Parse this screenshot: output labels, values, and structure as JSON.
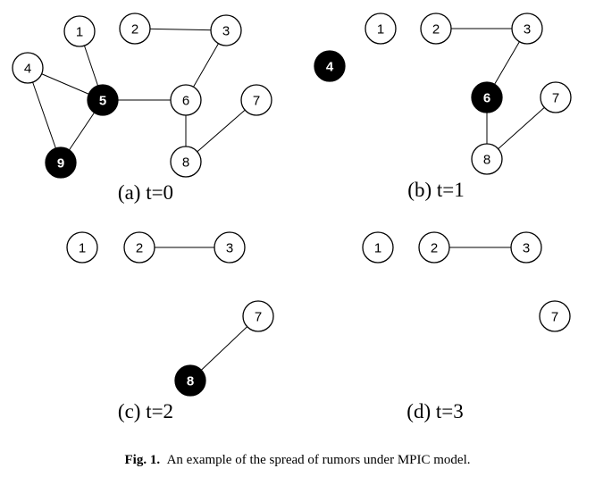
{
  "panels": [
    {
      "label": "(a) t=0",
      "nodes": [
        {
          "id": "1",
          "infected": false
        },
        {
          "id": "2",
          "infected": false
        },
        {
          "id": "3",
          "infected": false
        },
        {
          "id": "4",
          "infected": false
        },
        {
          "id": "5",
          "infected": true
        },
        {
          "id": "6",
          "infected": false
        },
        {
          "id": "7",
          "infected": false
        },
        {
          "id": "8",
          "infected": false
        },
        {
          "id": "9",
          "infected": true
        }
      ],
      "edges": [
        [
          "1",
          "5"
        ],
        [
          "2",
          "3"
        ],
        [
          "3",
          "6"
        ],
        [
          "4",
          "5"
        ],
        [
          "4",
          "9"
        ],
        [
          "5",
          "9"
        ],
        [
          "5",
          "6"
        ],
        [
          "6",
          "8"
        ],
        [
          "7",
          "8"
        ]
      ]
    },
    {
      "label": "(b) t=1",
      "nodes": [
        {
          "id": "1",
          "infected": false
        },
        {
          "id": "2",
          "infected": false
        },
        {
          "id": "3",
          "infected": false
        },
        {
          "id": "4",
          "infected": true
        },
        {
          "id": "6",
          "infected": true
        },
        {
          "id": "7",
          "infected": false
        },
        {
          "id": "8",
          "infected": false
        }
      ],
      "edges": [
        [
          "2",
          "3"
        ],
        [
          "3",
          "6"
        ],
        [
          "6",
          "8"
        ],
        [
          "7",
          "8"
        ]
      ]
    },
    {
      "label": "(c) t=2",
      "nodes": [
        {
          "id": "1",
          "infected": false
        },
        {
          "id": "2",
          "infected": false
        },
        {
          "id": "3",
          "infected": false
        },
        {
          "id": "7",
          "infected": false
        },
        {
          "id": "8",
          "infected": true
        }
      ],
      "edges": [
        [
          "2",
          "3"
        ],
        [
          "7",
          "8"
        ]
      ]
    },
    {
      "label": "(d) t=3",
      "nodes": [
        {
          "id": "1",
          "infected": false
        },
        {
          "id": "2",
          "infected": false
        },
        {
          "id": "3",
          "infected": false
        },
        {
          "id": "7",
          "infected": false
        }
      ],
      "edges": [
        [
          "2",
          "3"
        ]
      ]
    }
  ],
  "caption": {
    "prefix": "Fig. 1.",
    "text": "An example of the spread of rumors under MPIC model."
  }
}
